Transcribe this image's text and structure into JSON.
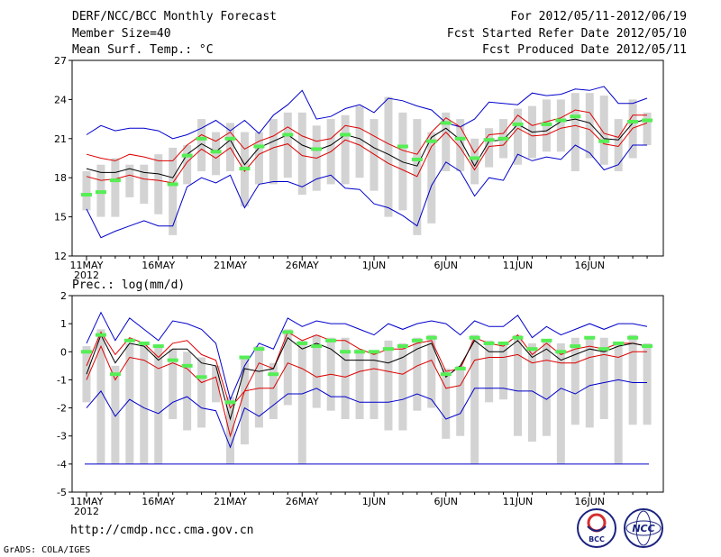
{
  "header": {
    "title": "DERF/NCC/BCC Monthly Forecast",
    "member": "Member Size=40",
    "variable": "Mean Surf. Temp.: °C",
    "for_period": "For 2012/05/11-2012/06/19",
    "started": "Fcst Started Refer Date 2012/05/10",
    "produced": "Fcst Produced Date 2012/05/11"
  },
  "footer": {
    "url": "http://cmdp.ncc.cma.gov.cn",
    "grads": "GrADS: COLA/IGES",
    "logo_bcc": "BCC",
    "logo_ncc": "NCC"
  },
  "colors": {
    "envelope": "#0000cc",
    "spread": "#dd0000",
    "mean": "#000000",
    "observed": "#55ee55",
    "box": "#d3d3d3"
  },
  "chart_data": [
    {
      "type": "line",
      "title": "Mean Surf. Temp.: °C",
      "x_tick_labels": [
        "11MAY",
        "16MAY",
        "21MAY",
        "26MAY",
        "1JUN",
        "6JUN",
        "11JUN",
        "16JUN"
      ],
      "x_year_label": "2012",
      "ylim": [
        12,
        27
      ],
      "yticks": [
        12,
        15,
        18,
        21,
        24,
        27
      ],
      "days": 40,
      "series": [
        {
          "name": "max",
          "values": [
            21.3,
            22.0,
            21.6,
            21.8,
            21.8,
            21.6,
            21.0,
            21.3,
            21.8,
            22.4,
            21.6,
            22.4,
            21.4,
            22.8,
            23.6,
            24.7,
            22.5,
            22.7,
            23.3,
            23.6,
            23.0,
            24.1,
            23.9,
            23.5,
            23.2,
            22.2,
            21.9,
            22.5,
            23.8,
            23.7,
            23.6,
            24.5,
            24.3,
            24.4,
            24.8,
            24.7,
            25.0,
            23.7,
            23.7,
            24.1
          ]
        },
        {
          "name": "upper",
          "values": [
            19.8,
            19.5,
            19.3,
            19.8,
            19.6,
            19.3,
            19.3,
            20.5,
            21.3,
            20.8,
            21.5,
            20.2,
            20.8,
            21.2,
            21.9,
            21.2,
            20.8,
            21.0,
            22.0,
            21.8,
            21.2,
            20.6,
            20.1,
            19.8,
            21.5,
            22.6,
            21.9,
            19.9,
            21.3,
            21.4,
            22.8,
            22.0,
            22.3,
            22.6,
            23.2,
            23.0,
            21.4,
            21.1,
            22.8,
            22.8
          ]
        },
        {
          "name": "mean",
          "values": [
            18.7,
            18.4,
            18.4,
            18.7,
            18.4,
            18.3,
            18.0,
            19.8,
            20.6,
            20.0,
            20.9,
            19.0,
            20.3,
            20.8,
            21.3,
            20.5,
            20.1,
            20.5,
            21.3,
            21.0,
            20.3,
            19.8,
            19.2,
            18.9,
            21.1,
            21.8,
            20.9,
            18.9,
            20.8,
            20.9,
            22.1,
            21.5,
            21.6,
            22.3,
            22.5,
            22.2,
            21.0,
            20.9,
            22.2,
            22.5
          ]
        },
        {
          "name": "lower",
          "values": [
            18.1,
            17.8,
            17.9,
            18.2,
            17.9,
            17.8,
            17.6,
            19.2,
            20.2,
            19.5,
            20.3,
            18.5,
            19.8,
            20.3,
            20.6,
            19.7,
            19.5,
            20.0,
            20.9,
            20.5,
            19.8,
            19.1,
            18.6,
            18.1,
            20.4,
            21.5,
            20.3,
            18.6,
            20.4,
            20.5,
            21.8,
            21.2,
            21.3,
            21.8,
            22.0,
            21.7,
            20.6,
            20.4,
            21.8,
            22.2
          ]
        },
        {
          "name": "min",
          "values": [
            15.6,
            13.4,
            13.9,
            14.3,
            14.7,
            14.3,
            14.3,
            17.3,
            18.0,
            17.6,
            18.2,
            15.7,
            17.5,
            17.7,
            17.7,
            17.3,
            17.9,
            18.2,
            17.2,
            17.1,
            16.0,
            15.7,
            15.1,
            14.3,
            17.4,
            19.2,
            18.5,
            16.6,
            18.0,
            17.8,
            19.8,
            19.3,
            19.6,
            19.4,
            20.5,
            19.9,
            18.6,
            19.0,
            20.5,
            20.5
          ]
        }
      ],
      "boxes": [
        [
          15.5,
          18.5
        ],
        [
          15.0,
          19.0
        ],
        [
          15.0,
          19.5
        ],
        [
          16.5,
          19.0
        ],
        [
          16.0,
          19.0
        ],
        [
          15.2,
          19.8
        ],
        [
          13.6,
          20.3
        ],
        [
          17.5,
          20.5
        ],
        [
          18.5,
          22.5
        ],
        [
          18.2,
          21.5
        ],
        [
          18.5,
          22.2
        ],
        [
          15.8,
          21.5
        ],
        [
          17.5,
          21.5
        ],
        [
          17.5,
          22.5
        ],
        [
          18.0,
          23.0
        ],
        [
          16.7,
          23.0
        ],
        [
          17.0,
          22.0
        ],
        [
          17.5,
          22.5
        ],
        [
          17.5,
          22.8
        ],
        [
          18.0,
          23.5
        ],
        [
          17.0,
          22.5
        ],
        [
          15.0,
          24.2
        ],
        [
          15.5,
          23.0
        ],
        [
          13.6,
          22.5
        ],
        [
          14.5,
          21.5
        ],
        [
          18.5,
          23.0
        ],
        [
          18.5,
          22.5
        ],
        [
          17.5,
          21.0
        ],
        [
          18.8,
          21.8
        ],
        [
          19.5,
          22.5
        ],
        [
          19.0,
          23.3
        ],
        [
          19.5,
          23.5
        ],
        [
          20.0,
          24.0
        ],
        [
          20.0,
          24.0
        ],
        [
          18.5,
          24.5
        ],
        [
          19.5,
          24.5
        ],
        [
          19.0,
          24.3
        ],
        [
          18.5,
          22.5
        ],
        [
          19.5,
          24.0
        ],
        [
          20.5,
          23.0
        ]
      ],
      "observed": [
        16.7,
        16.9,
        17.8,
        null,
        null,
        null,
        17.5,
        19.7,
        21.0,
        20.0,
        21.0,
        18.7,
        20.4,
        null,
        21.3,
        null,
        20.2,
        null,
        21.3,
        null,
        null,
        null,
        20.4,
        19.4,
        20.8,
        22.2,
        21.0,
        19.5,
        20.9,
        21.0,
        22.1,
        null,
        22.1,
        22.4,
        22.7,
        null,
        20.8,
        null,
        22.3,
        22.4
      ]
    },
    {
      "type": "line",
      "title": "Prec.: log(mm/d)",
      "x_tick_labels": [
        "11MAY",
        "16MAY",
        "21MAY",
        "26MAY",
        "1JUN",
        "6JUN",
        "11JUN",
        "16JUN"
      ],
      "x_year_label": "2012",
      "ylim": [
        -5,
        2
      ],
      "yticks": [
        -5,
        -4,
        -3,
        -2,
        -1,
        0,
        1,
        2
      ],
      "days": 40,
      "series": [
        {
          "name": "max",
          "values": [
            0.3,
            1.4,
            0.4,
            1.2,
            0.8,
            0.4,
            1.1,
            1.0,
            0.8,
            0.3,
            -1.7,
            -0.5,
            0.3,
            0.1,
            1.2,
            0.9,
            1.1,
            1.0,
            1.0,
            0.8,
            0.6,
            1.0,
            0.8,
            1.0,
            1.1,
            1.0,
            0.6,
            1.1,
            0.9,
            0.9,
            1.3,
            0.5,
            0.9,
            0.6,
            0.8,
            1.0,
            0.8,
            1.0,
            1.0,
            0.9
          ]
        },
        {
          "name": "upper",
          "values": [
            -0.5,
            0.7,
            -0.1,
            0.5,
            0.3,
            -0.2,
            0.3,
            0.4,
            -0.1,
            -0.3,
            -2.0,
            -1.4,
            -0.4,
            -0.6,
            0.7,
            0.4,
            0.6,
            0.4,
            0.4,
            0.1,
            -0.1,
            0.1,
            0.1,
            0.3,
            0.4,
            -0.7,
            -0.6,
            0.5,
            0.3,
            0.2,
            0.6,
            -0.1,
            0.3,
            -0.1,
            0.1,
            0.2,
            0.1,
            0.3,
            0.3,
            0.2
          ]
        },
        {
          "name": "mean",
          "values": [
            -0.8,
            0.6,
            -0.4,
            0.3,
            0.2,
            -0.3,
            0.1,
            0.1,
            -0.4,
            -0.5,
            -2.4,
            -0.6,
            -0.7,
            -0.6,
            0.5,
            0.1,
            0.3,
            0.1,
            -0.3,
            -0.3,
            -0.3,
            -0.4,
            -0.2,
            0.1,
            0.3,
            -0.9,
            -0.5,
            0.4,
            0.0,
            0.0,
            0.4,
            -0.2,
            0.1,
            -0.3,
            -0.1,
            0.1,
            0.0,
            0.2,
            0.3,
            0.2
          ]
        },
        {
          "name": "lower",
          "values": [
            -1.0,
            0.2,
            -1.0,
            -0.2,
            -0.3,
            -0.6,
            -0.4,
            -0.6,
            -1.1,
            -0.9,
            -3.0,
            -1.4,
            -1.3,
            -1.3,
            -0.4,
            -0.6,
            -0.9,
            -0.8,
            -0.9,
            -0.7,
            -0.6,
            -0.7,
            -0.8,
            -0.5,
            -0.3,
            -1.3,
            -1.2,
            -0.3,
            -0.2,
            -0.2,
            -0.1,
            -0.4,
            -0.3,
            -0.4,
            -0.4,
            -0.2,
            -0.1,
            -0.2,
            0.0,
            0.0
          ]
        },
        {
          "name": "min",
          "values": [
            -2.0,
            -1.4,
            -2.3,
            -1.7,
            -2.0,
            -2.2,
            -1.8,
            -1.6,
            -2.0,
            -2.1,
            -3.4,
            -2.0,
            -2.3,
            -1.9,
            -1.5,
            -1.5,
            -1.3,
            -1.6,
            -1.6,
            -1.8,
            -1.8,
            -1.8,
            -1.7,
            -1.5,
            -1.7,
            -2.4,
            -2.2,
            -1.3,
            -1.3,
            -1.3,
            -1.4,
            -1.4,
            -1.7,
            -1.3,
            -1.5,
            -1.2,
            -1.1,
            -1.0,
            -1.1,
            -1.1
          ]
        }
      ],
      "boxes": [
        [
          -1.8,
          0.2
        ],
        [
          -4.0,
          0.8
        ],
        [
          -4.0,
          -0.5
        ],
        [
          -4.0,
          0.3
        ],
        [
          -4.0,
          0.3
        ],
        [
          -4.0,
          0.2
        ],
        [
          -2.4,
          0.1
        ],
        [
          -2.8,
          0.0
        ],
        [
          -2.7,
          -0.2
        ],
        [
          -1.8,
          -0.5
        ],
        [
          -4.0,
          -1.6
        ],
        [
          -3.3,
          -0.2
        ],
        [
          -2.7,
          0.2
        ],
        [
          -2.4,
          -0.4
        ],
        [
          -1.9,
          0.8
        ],
        [
          -4.0,
          0.4
        ],
        [
          -2.0,
          0.6
        ],
        [
          -2.1,
          0.5
        ],
        [
          -2.4,
          0.5
        ],
        [
          -2.4,
          0.1
        ],
        [
          -2.4,
          0.0
        ],
        [
          -2.8,
          0.4
        ],
        [
          -2.8,
          0.3
        ],
        [
          -2.1,
          0.5
        ],
        [
          -2.0,
          0.6
        ],
        [
          -3.1,
          -0.6
        ],
        [
          -3.0,
          -0.5
        ],
        [
          -4.0,
          0.6
        ],
        [
          -1.8,
          0.4
        ],
        [
          -1.7,
          0.3
        ],
        [
          -3.0,
          0.6
        ],
        [
          -3.2,
          0.3
        ],
        [
          -3.0,
          0.4
        ],
        [
          -4.0,
          0.3
        ],
        [
          -2.6,
          0.5
        ],
        [
          -2.7,
          0.5
        ],
        [
          -2.4,
          0.5
        ],
        [
          -4.0,
          0.3
        ],
        [
          -2.6,
          0.6
        ],
        [
          -2.6,
          0.3
        ]
      ],
      "observed": [
        0.0,
        0.6,
        -0.8,
        0.4,
        0.3,
        0.2,
        -0.3,
        -0.5,
        -0.9,
        null,
        -1.8,
        -0.2,
        0.1,
        -0.8,
        0.7,
        0.3,
        0.2,
        0.4,
        0.0,
        0.0,
        0.0,
        0.1,
        0.2,
        0.4,
        0.5,
        -0.8,
        -0.6,
        0.5,
        0.3,
        0.3,
        0.5,
        0.1,
        0.4,
        0.0,
        0.2,
        0.5,
        0.1,
        0.3,
        0.5,
        0.2
      ],
      "baseline": -4
    }
  ]
}
